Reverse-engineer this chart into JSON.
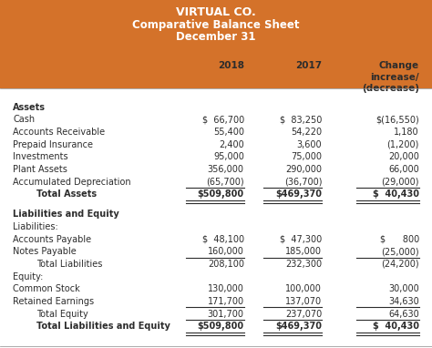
{
  "title_line1": "VIRTUAL CO.",
  "title_line2": "Comparative Balance Sheet",
  "title_line3": "December 31",
  "header_bg": "#D4722A",
  "header_text_color": "#FFFFFF",
  "bg_color": "#FFFFFF",
  "text_color": "#2C2C2C",
  "rows": [
    {
      "label": "2018",
      "v1": "",
      "v2": "",
      "v3": "Change\nincrease/\n(decrease)",
      "style": "colhdr",
      "ul": false,
      "dul": false
    },
    {
      "label": "Assets",
      "v1": "",
      "v2": "",
      "v3": "",
      "style": "section_bold",
      "ul": false,
      "dul": false
    },
    {
      "label": "Cash",
      "v1": "$  66,700",
      "v2": "$  83,250",
      "v3": "$(16,550)",
      "style": "normal",
      "ul": false,
      "dul": false
    },
    {
      "label": "Accounts Receivable",
      "v1": "55,400",
      "v2": "54,220",
      "v3": "1,180",
      "style": "normal",
      "ul": false,
      "dul": false
    },
    {
      "label": "Prepaid Insurance",
      "v1": "2,400",
      "v2": "3,600",
      "v3": "(1,200)",
      "style": "normal",
      "ul": false,
      "dul": false
    },
    {
      "label": "Investments",
      "v1": "95,000",
      "v2": "75,000",
      "v3": "20,000",
      "style": "normal",
      "ul": false,
      "dul": false
    },
    {
      "label": "Plant Assets",
      "v1": "356,000",
      "v2": "290,000",
      "v3": "66,000",
      "style": "normal",
      "ul": false,
      "dul": false
    },
    {
      "label": "Accumulated Depreciation",
      "v1": "(65,700)",
      "v2": "(36,700)",
      "v3": "(29,000)",
      "style": "normal",
      "ul": true,
      "dul": false
    },
    {
      "label": "Total Assets",
      "v1": "$509,800",
      "v2": "$469,370",
      "v3": "$  40,430",
      "style": "total",
      "ul": false,
      "dul": true
    },
    {
      "label": "",
      "v1": "",
      "v2": "",
      "v3": "",
      "style": "spacer",
      "ul": false,
      "dul": false
    },
    {
      "label": "Liabilities and Equity",
      "v1": "",
      "v2": "",
      "v3": "",
      "style": "section_bold",
      "ul": false,
      "dul": false
    },
    {
      "label": "Liabilities:",
      "v1": "",
      "v2": "",
      "v3": "",
      "style": "normal",
      "ul": false,
      "dul": false
    },
    {
      "label": "Accounts Payable",
      "v1": "$  48,100",
      "v2": "$  47,300",
      "v3": "$      800",
      "style": "normal",
      "ul": false,
      "dul": false
    },
    {
      "label": "Notes Payable",
      "v1": "160,000",
      "v2": "185,000",
      "v3": "(25,000)",
      "style": "normal",
      "ul": true,
      "dul": false
    },
    {
      "label": "Total Liabilities",
      "v1": "208,100",
      "v2": "232,300",
      "v3": "(24,200)",
      "style": "indent1",
      "ul": false,
      "dul": false
    },
    {
      "label": "Equity:",
      "v1": "",
      "v2": "",
      "v3": "",
      "style": "normal",
      "ul": false,
      "dul": false
    },
    {
      "label": "Common Stock",
      "v1": "130,000",
      "v2": "100,000",
      "v3": "30,000",
      "style": "normal",
      "ul": false,
      "dul": false
    },
    {
      "label": "Retained Earnings",
      "v1": "171,700",
      "v2": "137,070",
      "v3": "34,630",
      "style": "normal",
      "ul": true,
      "dul": false
    },
    {
      "label": "Total Equity",
      "v1": "301,700",
      "v2": "237,070",
      "v3": "64,630",
      "style": "indent1",
      "ul": true,
      "dul": false
    },
    {
      "label": "Total Liabilities and Equity",
      "v1": "$509,800",
      "v2": "$469,370",
      "v3": "$  40,430",
      "style": "total",
      "ul": false,
      "dul": true
    }
  ],
  "col1_hdr": "2018",
  "col2_hdr": "2017"
}
